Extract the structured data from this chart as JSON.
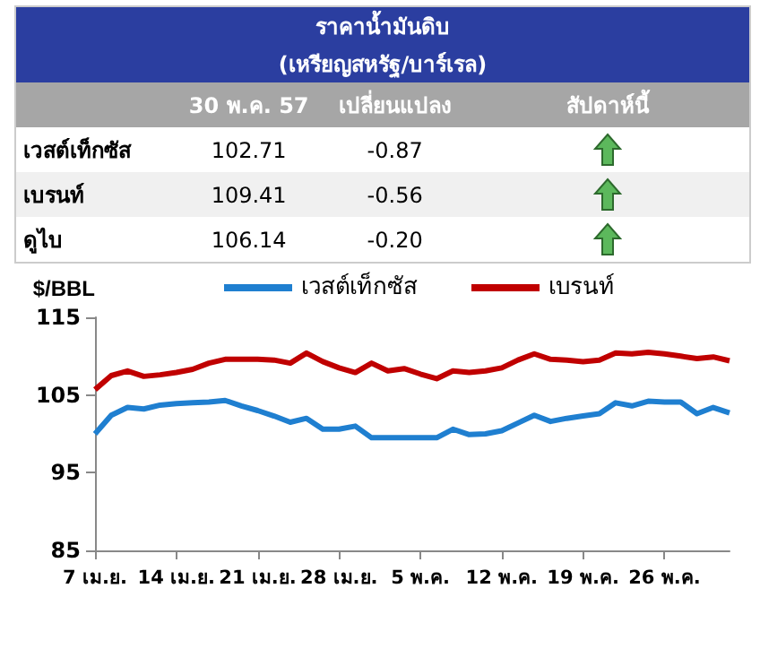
{
  "chart_data": [
    {
      "type": "other",
      "title": "ราคาน้ำมันดิบ",
      "subtitle": "(เหรียญสหรัฐ/บาร์เรล)",
      "categories": [
        "เวสต์เท็กซัส",
        "เบรนท์",
        "ดูไบ"
      ],
      "annotations": [
        "สัปดาห์นี้"
      ],
      "series": [
        {
          "name": "30 พ.ค. 57",
          "values": [
            102.71,
            109.41,
            106.14
          ],
          "value_labels": [
            "102.71",
            "109.41",
            "106.14"
          ]
        },
        {
          "name": "เปลี่ยนแปลง",
          "values": [
            -0.87,
            -0.56,
            -0.2
          ],
          "value_labels": [
            "-0.87",
            "-0.56",
            "-0.20"
          ]
        }
      ]
    },
    {
      "type": "line",
      "ylabel": "$/BBL",
      "legend": "top",
      "marker": "none",
      "grid": false,
      "ylim": [
        85,
        115
      ],
      "yticks": [
        85,
        95,
        105,
        115
      ],
      "categories": [
        "7 เม.ย.",
        null,
        null,
        null,
        null,
        "14 เม.ย.",
        null,
        null,
        null,
        null,
        "21 เม.ย.",
        null,
        null,
        null,
        null,
        "28 เม.ย.",
        null,
        null,
        null,
        null,
        "5 พ.ค.",
        null,
        null,
        null,
        null,
        "12 พ.ค.",
        null,
        null,
        null,
        null,
        "19 พ.ค.",
        null,
        null,
        null,
        null,
        "26 พ.ค.",
        null,
        null,
        null,
        null
      ],
      "series": [
        {
          "name": "เวสต์เท็กซัส",
          "color": "#1f7fd0",
          "values": [
            100.0,
            102.4,
            103.4,
            103.2,
            103.7,
            103.9,
            104.0,
            104.1,
            104.3,
            103.6,
            103.0,
            102.3,
            101.5,
            102.0,
            100.6,
            100.6,
            101.0,
            99.5,
            99.5,
            99.5,
            99.5,
            99.5,
            100.6,
            99.9,
            100.0,
            100.4,
            101.4,
            102.4,
            101.6,
            102.0,
            102.3,
            102.6,
            104.0,
            103.6,
            104.2,
            104.1,
            104.1,
            102.6,
            103.4,
            102.7
          ]
        },
        {
          "name": "เบรนท์",
          "color": "#c00000",
          "values": [
            105.7,
            107.5,
            108.1,
            107.4,
            107.6,
            107.9,
            108.3,
            109.1,
            109.6,
            109.6,
            109.6,
            109.5,
            109.1,
            110.4,
            109.3,
            108.5,
            107.9,
            109.1,
            108.1,
            108.4,
            107.7,
            107.1,
            108.1,
            107.9,
            108.1,
            108.5,
            109.5,
            110.3,
            109.6,
            109.5,
            109.3,
            109.5,
            110.4,
            110.3,
            110.5,
            110.3,
            110.0,
            109.7,
            109.9,
            109.4
          ]
        }
      ]
    }
  ]
}
